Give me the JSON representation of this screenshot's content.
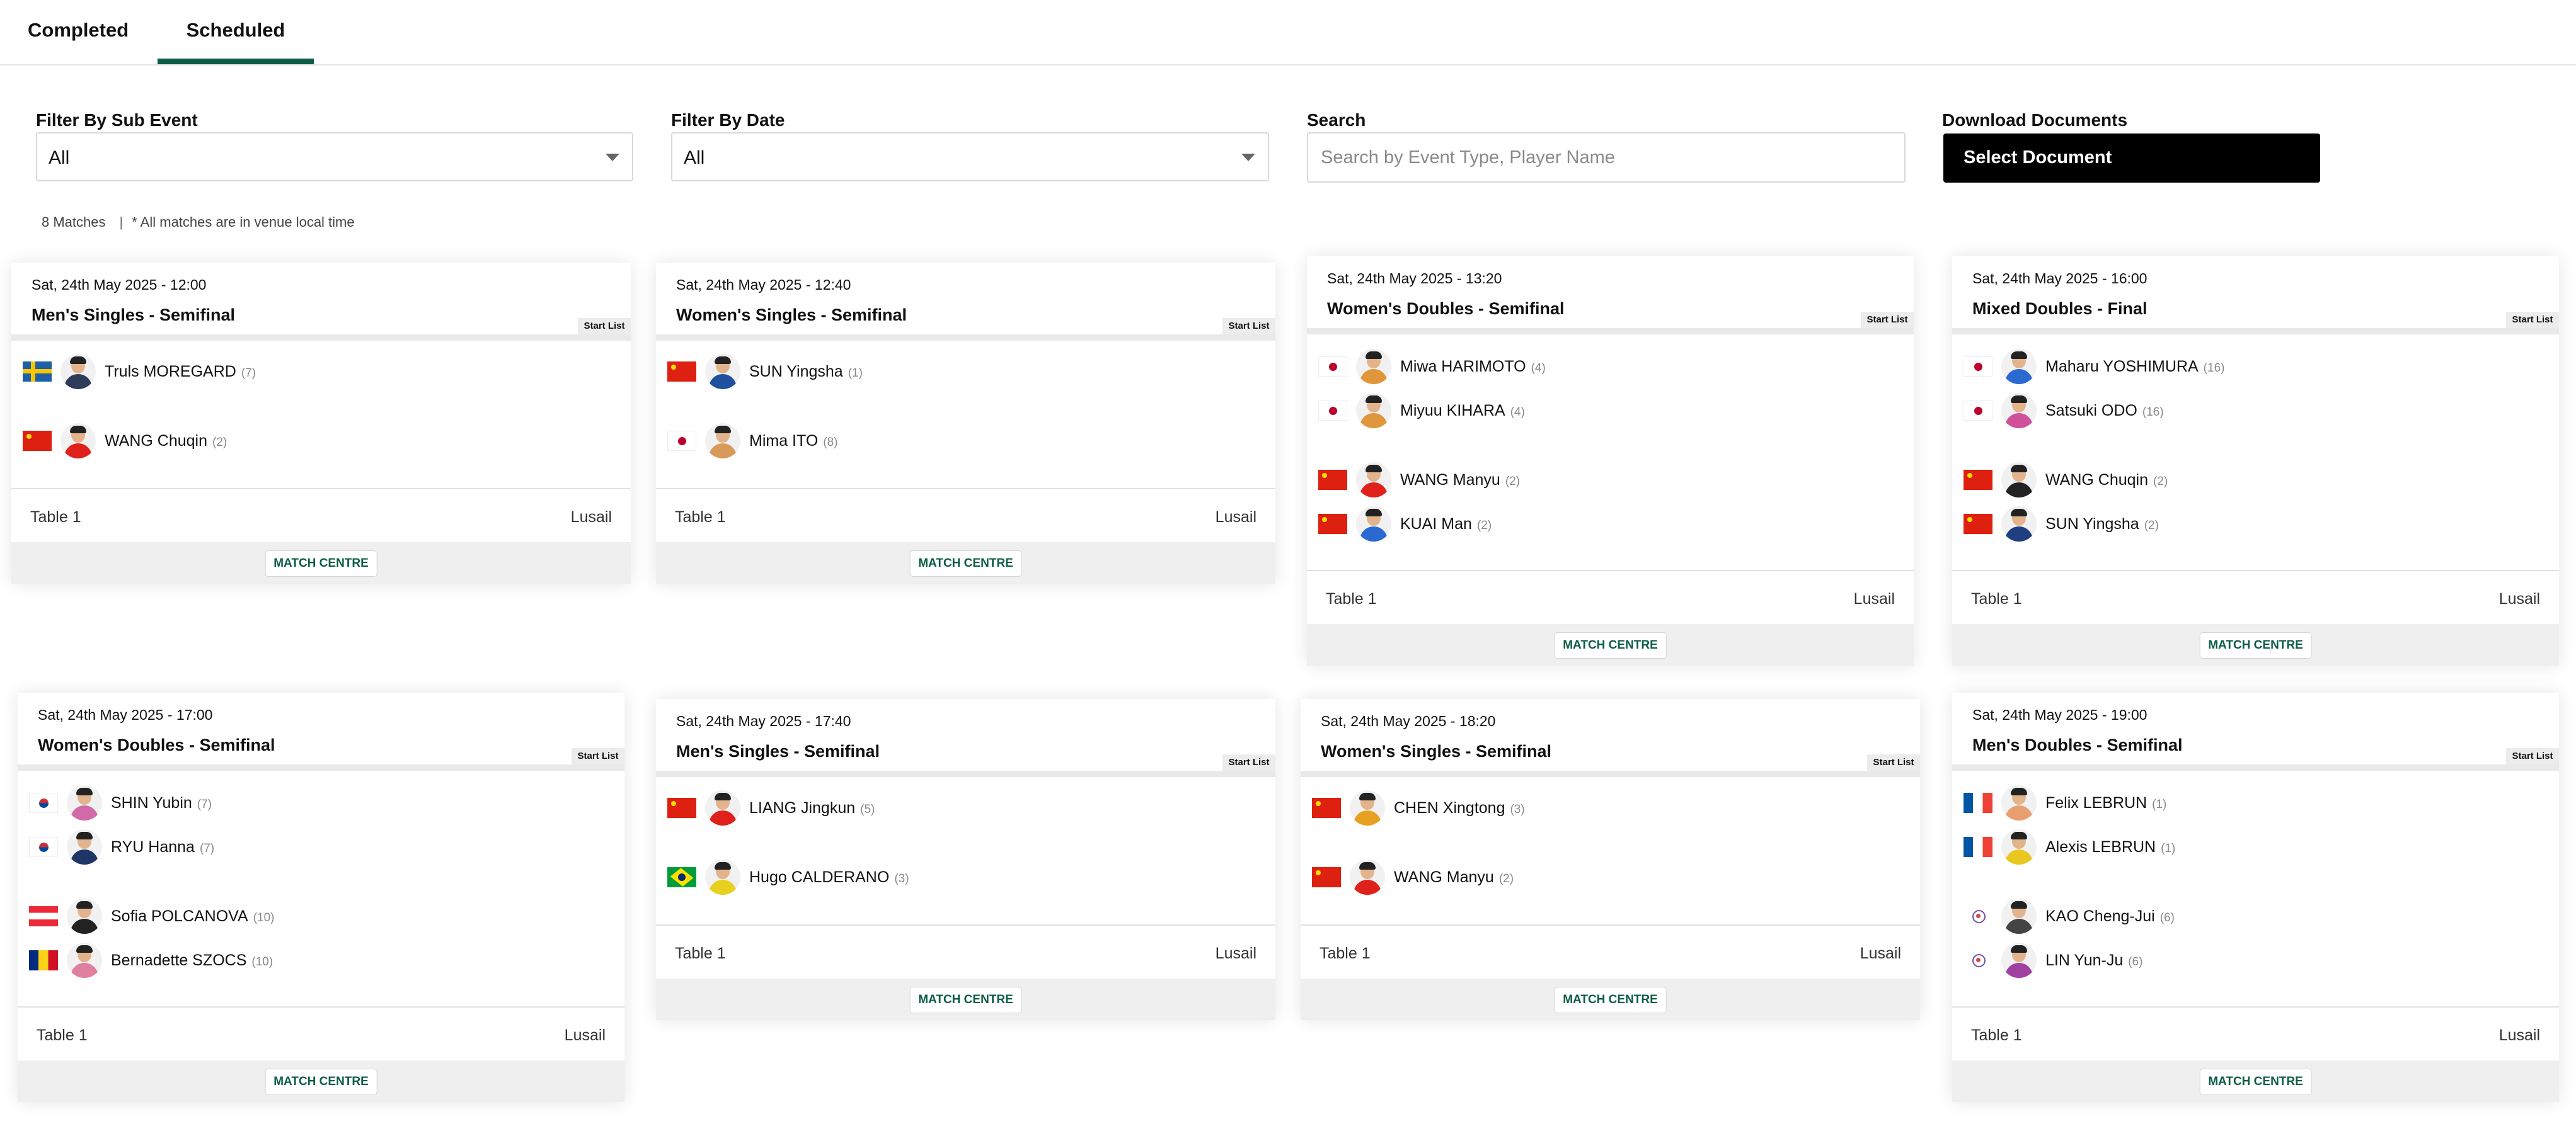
{
  "tabs": [
    {
      "label": "Completed",
      "active": false
    },
    {
      "label": "Scheduled",
      "active": true
    }
  ],
  "filters": {
    "sub_event": {
      "label": "Filter By Sub Event",
      "value": "All"
    },
    "date": {
      "label": "Filter By Date",
      "value": "All"
    },
    "search": {
      "label": "Search",
      "placeholder": "Search by Event Type, Player Name",
      "value": ""
    },
    "download": {
      "label": "Download Documents",
      "button": "Select Document"
    }
  },
  "meta": {
    "count": "8 Matches",
    "separator": "|",
    "note": "* All matches are in venue local time"
  },
  "ui": {
    "start_list": "Start List",
    "match_centre": "MATCH CENTRE"
  },
  "colors": {
    "accent": "#0c5c46",
    "button_dark": "#000000"
  },
  "matches": [
    {
      "datetime": "Sat, 24th May 2025 - 12:00",
      "event": "Men's Singles - Semifinal",
      "table": "Table 1",
      "venue": "Lusail",
      "players": [
        {
          "name": "Truls MOREGARD",
          "seed": "(7)",
          "flag": "se",
          "kit": "#2f3b5a"
        },
        {
          "name": "WANG Chuqin",
          "seed": "(2)",
          "flag": "cn",
          "kit": "#e0201a"
        }
      ]
    },
    {
      "datetime": "Sat, 24th May 2025 - 12:40",
      "event": "Women's Singles - Semifinal",
      "table": "Table 1",
      "venue": "Lusail",
      "players": [
        {
          "name": "SUN Yingsha",
          "seed": "(1)",
          "flag": "cn",
          "kit": "#2050a0"
        },
        {
          "name": "Mima ITO",
          "seed": "(8)",
          "flag": "jp",
          "kit": "#d89a5a"
        }
      ]
    },
    {
      "datetime": "Sat, 24th May 2025 - 13:20",
      "event": "Women's Doubles - Semifinal",
      "table": "Table 1",
      "venue": "Lusail",
      "players": [
        {
          "name": "Miwa HARIMOTO",
          "seed": "(4)",
          "flag": "jp",
          "kit": "#e0963a"
        },
        {
          "name": "Miyuu KIHARA",
          "seed": "(4)",
          "flag": "jp",
          "kit": "#e0963a"
        },
        {
          "name": "WANG Manyu",
          "seed": "(2)",
          "flag": "cn",
          "kit": "#e0201a"
        },
        {
          "name": "KUAI Man",
          "seed": "(2)",
          "flag": "cn",
          "kit": "#2a6ad0"
        }
      ]
    },
    {
      "datetime": "Sat, 24th May 2025 - 16:00",
      "event": "Mixed Doubles - Final",
      "table": "Table 1",
      "venue": "Lusail",
      "players": [
        {
          "name": "Maharu YOSHIMURA",
          "seed": "(16)",
          "flag": "jp",
          "kit": "#2a6ad0"
        },
        {
          "name": "Satsuki ODO",
          "seed": "(16)",
          "flag": "jp",
          "kit": "#d0509a"
        },
        {
          "name": "WANG Chuqin",
          "seed": "(2)",
          "flag": "cn",
          "kit": "#222222"
        },
        {
          "name": "SUN Yingsha",
          "seed": "(2)",
          "flag": "cn",
          "kit": "#1f3f80"
        }
      ]
    },
    {
      "datetime": "Sat, 24th May 2025 - 17:00",
      "event": "Women's Doubles - Semifinal",
      "table": "Table 1",
      "venue": "Lusail",
      "players": [
        {
          "name": "SHIN Yubin",
          "seed": "(7)",
          "flag": "kr",
          "kit": "#d06aa8"
        },
        {
          "name": "RYU Hanna",
          "seed": "(7)",
          "flag": "kr",
          "kit": "#1f3566"
        },
        {
          "name": "Sofia POLCANOVA",
          "seed": "(10)",
          "flag": "at",
          "kit": "#222222"
        },
        {
          "name": "Bernadette SZOCS",
          "seed": "(10)",
          "flag": "ro",
          "kit": "#e080a0"
        }
      ]
    },
    {
      "datetime": "Sat, 24th May 2025 - 17:40",
      "event": "Men's Singles - Semifinal",
      "table": "Table 1",
      "venue": "Lusail",
      "players": [
        {
          "name": "LIANG Jingkun",
          "seed": "(5)",
          "flag": "cn",
          "kit": "#e0201a"
        },
        {
          "name": "Hugo CALDERANO",
          "seed": "(3)",
          "flag": "br",
          "kit": "#e8d020"
        }
      ]
    },
    {
      "datetime": "Sat, 24th May 2025 - 18:20",
      "event": "Women's Singles - Semifinal",
      "table": "Table 1",
      "venue": "Lusail",
      "players": [
        {
          "name": "CHEN Xingtong",
          "seed": "(3)",
          "flag": "cn",
          "kit": "#e8a020"
        },
        {
          "name": "WANG Manyu",
          "seed": "(2)",
          "flag": "cn",
          "kit": "#e0201a"
        }
      ]
    },
    {
      "datetime": "Sat, 24th May 2025 - 19:00",
      "event": "Men's Doubles - Semifinal",
      "table": "Table 1",
      "venue": "Lusail",
      "players": [
        {
          "name": "Felix LEBRUN",
          "seed": "(1)",
          "flag": "fr",
          "kit": "#e8a070"
        },
        {
          "name": "Alexis LEBRUN",
          "seed": "(1)",
          "flag": "fr",
          "kit": "#e8c820"
        },
        {
          "name": "KAO Cheng-Jui",
          "seed": "(6)",
          "flag": "tpe",
          "kit": "#444444"
        },
        {
          "name": "LIN Yun-Ju",
          "seed": "(6)",
          "flag": "tpe",
          "kit": "#a040a0"
        }
      ]
    }
  ]
}
